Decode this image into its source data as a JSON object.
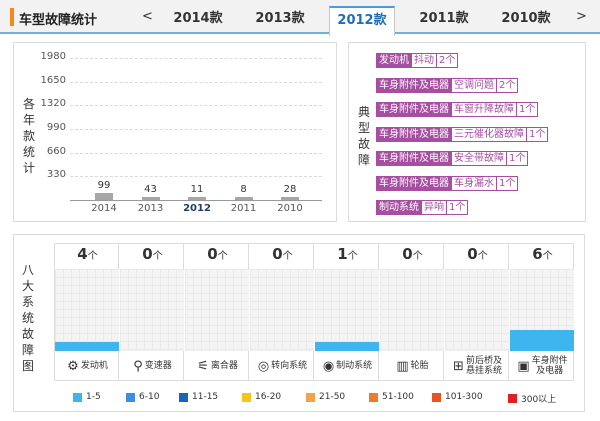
{
  "header": {
    "title": "车型故障统计",
    "prev": "<",
    "next": ">",
    "tabs": [
      "2014款",
      "2013款",
      "2012款",
      "2011款",
      "2010款"
    ],
    "active_tab": "2012款"
  },
  "yearly_panel": {
    "label_chars": [
      "各",
      "年",
      "款",
      "统",
      "计"
    ]
  },
  "chart_data": {
    "type": "bar",
    "categories": [
      "2014",
      "2013",
      "2012",
      "2011",
      "2010"
    ],
    "values": [
      99,
      43,
      11,
      8,
      28
    ],
    "value_labels": [
      "99",
      "43",
      "11",
      "8",
      "28"
    ],
    "yticks": [
      "1980",
      "1650",
      "1320",
      "990",
      "660",
      "330"
    ],
    "ytick_values": [
      1980,
      1650,
      1320,
      990,
      660,
      330
    ],
    "ylim": [
      0,
      1980
    ],
    "grid": true
  },
  "faults_panel": {
    "label_chars": [
      "典",
      "型",
      "故",
      "障"
    ],
    "items": [
      {
        "system": "发动机",
        "name": "抖动",
        "count": "2个"
      },
      {
        "system": "车身附件及电器",
        "name": "空调问题",
        "count": "2个"
      },
      {
        "system": "车身附件及电器",
        "name": "车窗升降故障",
        "count": "1个"
      },
      {
        "system": "车身附件及电器",
        "name": "三元催化器故障",
        "count": "1个"
      },
      {
        "system": "车身附件及电器",
        "name": "安全带故障",
        "count": "1个"
      },
      {
        "system": "车身附件及电器",
        "name": "车身漏水",
        "count": "1个"
      },
      {
        "system": "制动系统",
        "name": "异响",
        "count": "1个"
      }
    ]
  },
  "systems_panel": {
    "label_chars": [
      "八",
      "大",
      "系",
      "统",
      "故",
      "障",
      "图"
    ],
    "unit": "个",
    "systems": [
      {
        "name": "发动机",
        "count": "4",
        "value": 4,
        "icon": "engine-icon",
        "glyph": "⚙"
      },
      {
        "name": "变速器",
        "count": "0",
        "value": 0,
        "icon": "gearshift-icon",
        "glyph": "⚲"
      },
      {
        "name": "离合器",
        "count": "0",
        "value": 0,
        "icon": "clutch-icon",
        "glyph": "⚟"
      },
      {
        "name": "转向系统",
        "count": "0",
        "value": 0,
        "icon": "steering-wheel-icon",
        "glyph": "◎"
      },
      {
        "name": "制动系统",
        "count": "1",
        "value": 1,
        "icon": "brake-disc-icon",
        "glyph": "◉"
      },
      {
        "name": "轮胎",
        "count": "0",
        "value": 0,
        "icon": "tire-icon",
        "glyph": "▥"
      },
      {
        "name": "前后桥及\n悬挂系统",
        "count": "0",
        "value": 0,
        "icon": "axle-icon",
        "glyph": "⊞"
      },
      {
        "name": "车身附件\n及电器",
        "count": "6",
        "value": 6,
        "icon": "car-body-icon",
        "glyph": "▣"
      }
    ],
    "level_fill": {
      "4": 0.11,
      "1": 0.11,
      "6": 0.25
    },
    "legend": [
      {
        "label": "1-5",
        "color": "#3fb5f0"
      },
      {
        "label": "6-10",
        "color": "#3c8fe0"
      },
      {
        "label": "11-15",
        "color": "#1a63b5"
      },
      {
        "label": "16-20",
        "color": "#f5c518"
      },
      {
        "label": "21-50",
        "color": "#f5a14a"
      },
      {
        "label": "51-100",
        "color": "#ef7a2c"
      },
      {
        "label": "101-300",
        "color": "#e8531f"
      },
      {
        "label": "300以上",
        "color": "#e02020"
      }
    ]
  },
  "colors": {
    "accent": "#f08a1e",
    "tab_active": "#1f6fb8",
    "fault": "#a64ea0",
    "bar": "#a6a6a6"
  }
}
